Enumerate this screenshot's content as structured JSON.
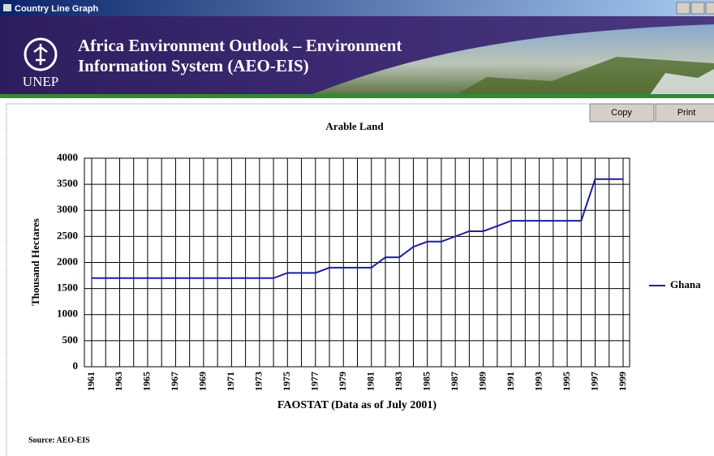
{
  "window": {
    "title": "Country Line Graph"
  },
  "banner": {
    "title_line1": "Africa Environment Outlook – Environment",
    "title_line2": "Information System (AEO-EIS)",
    "logo_text": "UNEP"
  },
  "buttons": [
    "Copy",
    "Print"
  ],
  "source": "Source: AEO-EIS",
  "chart_data": {
    "type": "line",
    "title": "Arable Land",
    "y_label": "Thousand Hectares",
    "x_label": "FAOSTAT (Data as of July 2001)",
    "categories": [
      "1961",
      null,
      "1963",
      null,
      "1965",
      null,
      "1967",
      null,
      "1969",
      null,
      "1971",
      null,
      "1973",
      null,
      "1975",
      null,
      "1977",
      null,
      "1979",
      null,
      "1981",
      null,
      "1983",
      null,
      "1985",
      null,
      "1987",
      null,
      "1989",
      null,
      "1991",
      null,
      "1993",
      null,
      "1995",
      null,
      "1997",
      null,
      "1999"
    ],
    "series": [
      {
        "name": "Ghana",
        "color": "#1c1ca6",
        "values": [
          1700,
          1700,
          1700,
          1700,
          1700,
          1700,
          1700,
          1700,
          1700,
          1700,
          1700,
          1700,
          1700,
          1700,
          1800,
          1800,
          1800,
          1900,
          1900,
          1900,
          1900,
          2100,
          2100,
          2300,
          2400,
          2400,
          2500,
          2600,
          2600,
          2700,
          2800,
          2800,
          2800,
          2800,
          2800,
          2800,
          3600,
          3600,
          3600
        ]
      }
    ],
    "ylim": [
      0,
      4000
    ],
    "yticks": [
      0,
      500,
      1000,
      1500,
      2000,
      2500,
      3000,
      3500,
      4000
    ],
    "grid": true,
    "legend": "right"
  }
}
